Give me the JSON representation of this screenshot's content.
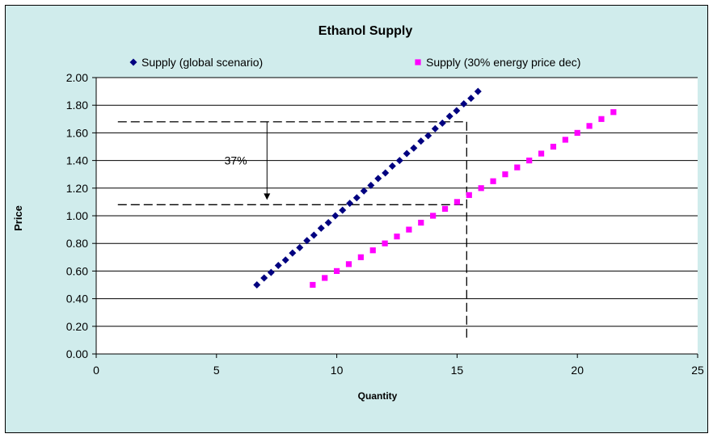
{
  "chart_data": {
    "type": "scatter",
    "title": "Ethanol Supply",
    "xlabel": "Quantity",
    "ylabel": "Price",
    "xlim": [
      0,
      25
    ],
    "ylim": [
      0,
      2
    ],
    "x_ticks": [
      0,
      5,
      10,
      15,
      20,
      25
    ],
    "x_tick_labels": [
      "0",
      "5",
      "10",
      "15",
      "20",
      "25"
    ],
    "y_ticks": [
      0,
      0.2,
      0.4,
      0.6,
      0.8,
      1.0,
      1.2,
      1.4,
      1.6,
      1.8,
      2.0
    ],
    "y_tick_labels": [
      "0.00",
      "0.20",
      "0.40",
      "0.60",
      "0.80",
      "1.00",
      "1.20",
      "1.40",
      "1.60",
      "1.80",
      "2.00"
    ],
    "grid": "horizontal",
    "legend_position": "top",
    "series": [
      {
        "name": "Supply (global scenario)",
        "marker": "diamond",
        "color": "#000080",
        "x": [
          6.68,
          6.98,
          7.27,
          7.57,
          7.87,
          8.16,
          8.46,
          8.76,
          9.05,
          9.35,
          9.65,
          9.94,
          10.24,
          10.54,
          10.83,
          11.13,
          11.42,
          11.72,
          12.02,
          12.31,
          12.61,
          12.91,
          13.2,
          13.5,
          13.8,
          14.09,
          14.39,
          14.69,
          14.98,
          15.28,
          15.58,
          15.87
        ],
        "y": [
          0.5,
          0.55,
          0.59,
          0.64,
          0.68,
          0.73,
          0.77,
          0.82,
          0.86,
          0.91,
          0.95,
          1.0,
          1.04,
          1.09,
          1.13,
          1.18,
          1.22,
          1.27,
          1.31,
          1.36,
          1.4,
          1.45,
          1.49,
          1.54,
          1.58,
          1.63,
          1.67,
          1.72,
          1.76,
          1.81,
          1.85,
          1.9
        ]
      },
      {
        "name": "Supply (30% energy price dec)",
        "marker": "square",
        "color": "#ff00ff",
        "x": [
          9.0,
          9.5,
          10.0,
          10.5,
          11.0,
          11.5,
          12.0,
          12.5,
          13.0,
          13.5,
          14.0,
          14.5,
          15.0,
          15.5,
          16.0,
          16.5,
          17.0,
          17.5,
          18.0,
          18.5,
          19.0,
          19.5,
          20.0,
          20.5,
          21.0,
          21.5
        ],
        "y": [
          0.5,
          0.55,
          0.6,
          0.65,
          0.7,
          0.75,
          0.8,
          0.85,
          0.9,
          0.95,
          1.0,
          1.05,
          1.1,
          1.15,
          1.2,
          1.25,
          1.3,
          1.35,
          1.4,
          1.45,
          1.5,
          1.55,
          1.6,
          1.65,
          1.7,
          1.75
        ]
      }
    ],
    "annotations": {
      "label": "37%",
      "label_at": [
        5.8,
        1.4
      ],
      "upper_price": 1.68,
      "lower_price": 1.08,
      "start_quantity": 0.9,
      "vertical_quantity": 15.4,
      "arrow_quantity": 7.1
    }
  }
}
